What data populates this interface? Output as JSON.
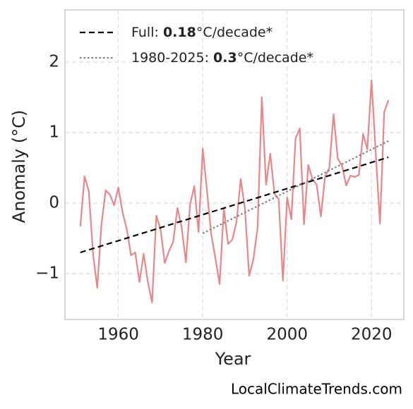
{
  "chart_data": {
    "type": "line",
    "xlabel": "Year",
    "ylabel": "Anomaly (°C)",
    "source": "LocalClimateTrends.com",
    "x": [
      1951,
      1952,
      1953,
      1954,
      1955,
      1956,
      1957,
      1958,
      1959,
      1960,
      1961,
      1962,
      1963,
      1964,
      1965,
      1966,
      1967,
      1968,
      1969,
      1970,
      1971,
      1972,
      1973,
      1974,
      1975,
      1976,
      1977,
      1978,
      1979,
      1980,
      1981,
      1982,
      1983,
      1984,
      1985,
      1986,
      1987,
      1988,
      1989,
      1990,
      1991,
      1992,
      1993,
      1994,
      1995,
      1996,
      1997,
      1998,
      1999,
      2000,
      2001,
      2002,
      2003,
      2004,
      2005,
      2006,
      2007,
      2008,
      2009,
      2010,
      2011,
      2012,
      2013,
      2014,
      2015,
      2016,
      2017,
      2018,
      2019,
      2020,
      2021,
      2022,
      2023,
      2024
    ],
    "values": [
      -0.33,
      0.38,
      0.17,
      -0.72,
      -1.2,
      -0.3,
      0.18,
      0.12,
      -0.03,
      0.22,
      -0.13,
      -0.37,
      -0.74,
      -0.7,
      -1.12,
      -0.72,
      -1.12,
      -1.41,
      -0.18,
      -0.37,
      -0.85,
      -0.68,
      -0.55,
      -0.07,
      -0.34,
      -0.84,
      -0.02,
      0.24,
      -0.41,
      0.77,
      0.18,
      -0.44,
      -0.78,
      -1.15,
      -0.07,
      -0.58,
      -0.52,
      -0.27,
      0.34,
      -0.08,
      -1.03,
      -0.8,
      -0.35,
      1.5,
      0.26,
      0.7,
      0.13,
      0.06,
      -1.1,
      0.08,
      -0.23,
      0.92,
      1.06,
      -0.3,
      0.54,
      0.34,
      0.26,
      -0.19,
      0.38,
      0.5,
      1.26,
      0.63,
      0.53,
      0.25,
      0.39,
      0.37,
      0.4,
      0.98,
      0.76,
      1.74,
      0.7,
      -0.29,
      1.29,
      1.46
    ],
    "color": "#e8868a",
    "trends": [
      {
        "name": [
          "Full: ",
          "0.18",
          "°C/decade*"
        ],
        "color": "#000000",
        "dash": "dashed",
        "x": [
          1951,
          2024
        ],
        "values": [
          -0.7,
          0.65
        ]
      },
      {
        "name": [
          "1980-2025: ",
          "0.3",
          "°C/decade*"
        ],
        "color": "#808080",
        "dash": "dotted",
        "x": [
          1980,
          2024
        ],
        "values": [
          -0.43,
          0.88
        ]
      }
    ],
    "xlim": [
      1947.35,
      2027.65
    ],
    "ylim": [
      -1.65,
      2.74
    ],
    "xticks": [
      1960,
      1980,
      2000,
      2020
    ],
    "yticks": [
      {
        "value": -1,
        "label": "−1"
      },
      0,
      1,
      2
    ],
    "grid": true,
    "legend": "upper left"
  }
}
